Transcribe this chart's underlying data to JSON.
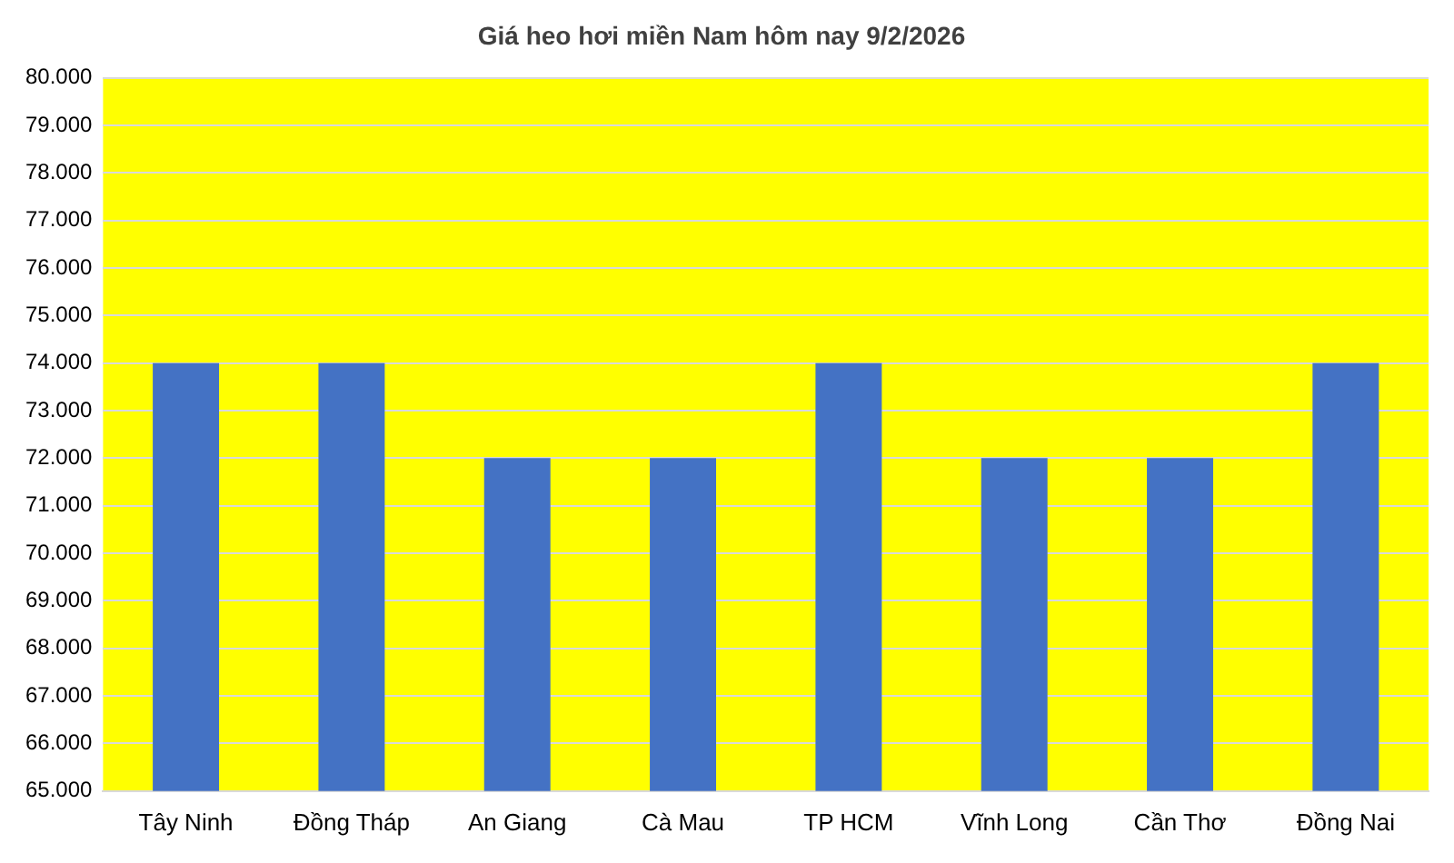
{
  "chart_data": {
    "type": "bar",
    "title": "Giá heo hơi miền Nam hôm nay 9/2/2026",
    "categories": [
      "Tây Ninh",
      "Đồng Tháp",
      "An Giang",
      "Cà Mau",
      "TP HCM",
      "Vĩnh Long",
      "Cần Thơ",
      "Đồng Nai"
    ],
    "values": [
      74000,
      74000,
      72000,
      72000,
      74000,
      72000,
      72000,
      74000
    ],
    "color": "#4472c4",
    "ylim": [
      65000,
      80000
    ],
    "yticks": [
      {
        "value": 65000,
        "label": "65.000"
      },
      {
        "value": 66000,
        "label": "66.000"
      },
      {
        "value": 67000,
        "label": "67.000"
      },
      {
        "value": 68000,
        "label": "68.000"
      },
      {
        "value": 69000,
        "label": "69.000"
      },
      {
        "value": 70000,
        "label": "70.000"
      },
      {
        "value": 71000,
        "label": "71.000"
      },
      {
        "value": 72000,
        "label": "72.000"
      },
      {
        "value": 73000,
        "label": "73.000"
      },
      {
        "value": 74000,
        "label": "74.000"
      },
      {
        "value": 75000,
        "label": "75.000"
      },
      {
        "value": 76000,
        "label": "76.000"
      },
      {
        "value": 77000,
        "label": "77.000"
      },
      {
        "value": 78000,
        "label": "78.000"
      },
      {
        "value": 79000,
        "label": "79.000"
      },
      {
        "value": 80000,
        "label": "80.000"
      }
    ],
    "grid": "y",
    "legend": false
  }
}
